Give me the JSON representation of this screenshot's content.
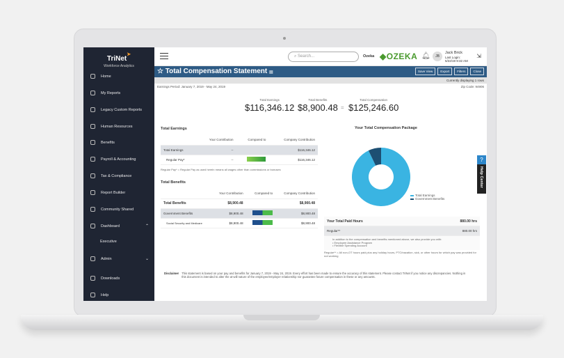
{
  "sidebar": {
    "brand": "TriNet",
    "brand_sub": "Workforce Analytics",
    "items": [
      {
        "label": "Home"
      },
      {
        "label": "My Reports"
      },
      {
        "label": "Legacy Custom Reports"
      },
      {
        "label": "Human Resources"
      },
      {
        "label": "Benefits"
      },
      {
        "label": "Payroll & Accounting"
      },
      {
        "label": "Tax & Compliance"
      },
      {
        "label": "Report Builder"
      },
      {
        "label": "Community Shared"
      },
      {
        "label": "Dashboard"
      },
      {
        "label": "Executive"
      },
      {
        "label": "Admin"
      },
      {
        "label": "Downloads"
      },
      {
        "label": "Help"
      }
    ]
  },
  "header": {
    "search_placeholder": "Search...",
    "company": "Ozeka",
    "company_logo": "OZEKA",
    "avatar": "JB",
    "user_name": "Jack Brick",
    "last_login_label": "Last Login:",
    "last_login": "5/22/19 9:32 AM"
  },
  "titlebar": {
    "title": "Total Compensation Statement",
    "buttons": [
      "Save View",
      "Export",
      "Filters",
      "Close"
    ]
  },
  "strip": "Currently displaying 1 rows",
  "period": "Earnings Period: January 7, 2019 - May 24, 2019",
  "zip": "Zip Code: 94906",
  "totals": {
    "earnings_label": "Total Earnings",
    "earnings": "$116,346.12",
    "plus": "+",
    "benefits_label": "Total Benefits",
    "benefits": "$8,900.48",
    "eq": "=",
    "comp_label": "Total Compensation",
    "comp": "$125,246.60"
  },
  "earnings": {
    "title": "Total Earnings",
    "headers": [
      "Your Contribution",
      "Compared to",
      "Company Contribution"
    ],
    "rows": [
      {
        "label": "Total Earnings",
        "yours": "--",
        "company": "$116,346.12"
      },
      {
        "label": "Regular Pay*",
        "yours": "--",
        "company": "$116,346.12"
      }
    ],
    "note": "Regular Pay* = Regular Pay as used herein means all wages other than commissions or bonuses"
  },
  "benefits": {
    "title": "Total Benefits",
    "headers": [
      "Your Contribution",
      "Compared to",
      "Company Contribution"
    ],
    "rows": [
      {
        "label": "Total Benefits",
        "yours": "$8,900.48",
        "company": "$8,900.48"
      },
      {
        "label": "Government Benefits",
        "yours": "$8,900.48",
        "company": "$8,900.48"
      },
      {
        "label": "Social Security and Medicare",
        "yours": "$8,900.48",
        "company": "$8,900.48"
      }
    ]
  },
  "chart_data": {
    "type": "pie",
    "title": "Your Total Compensation Package",
    "categories": [
      "Total Earnings",
      "Government Benefits"
    ],
    "values": [
      116346.12,
      8900.48
    ],
    "colors": [
      "#3ab4e2",
      "#1d4f73"
    ],
    "donut": true,
    "legend": "right"
  },
  "hours": {
    "title": "Your Total Paid Hours",
    "total": "880.00 hrs",
    "row_label": "Regular**",
    "row_value": "880.00 hrs",
    "intro": "In addition to the compensation and benefits mentioned above, we also provide you with:",
    "list": [
      "Employee Assistance Program",
      "Flexible Spending Account"
    ],
    "note": "Regular** = All non-OT hours paid plus any holiday hours, PTO/vacation, sick, or other hours for which pay was provided for not working"
  },
  "help": {
    "q": "?",
    "label": "Help Center"
  },
  "disclaimer": {
    "label": "Disclaimer",
    "text": "This statement is based on your pay and benefits for January 7, 2019 - May 24, 2019. Every effort has been made to ensure the accuracy of this statement. Please contact TriNet if you notice any discrepancies. Nothing in this document is intended to alter the at-will nature of the employee/employer relationship nor guarantee future compensation in these or any amounts."
  }
}
